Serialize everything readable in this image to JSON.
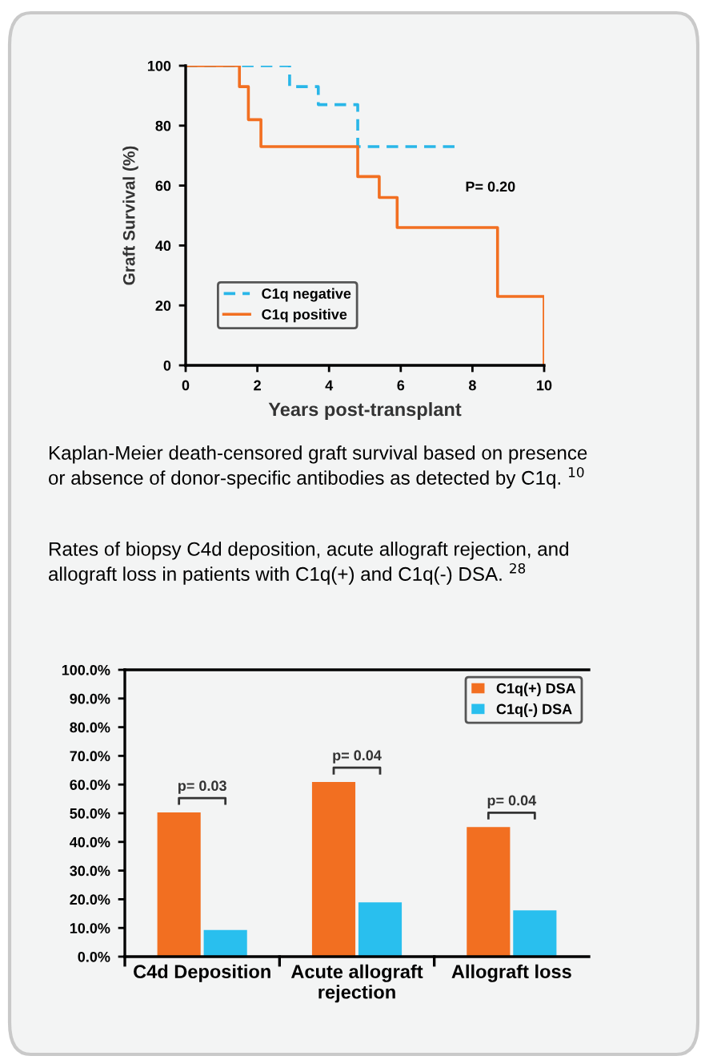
{
  "chart_data": [
    {
      "type": "step",
      "xlabel": "Years post-transplant",
      "ylabel": "Graft Survival (%)",
      "xlim": [
        0,
        10
      ],
      "ylim": [
        0,
        100
      ],
      "xticks": [
        0,
        2,
        4,
        6,
        8,
        10
      ],
      "yticks": [
        0,
        20,
        40,
        60,
        80,
        100
      ],
      "grid": false,
      "legend": "bottom left",
      "marker": "none",
      "series": [
        {
          "name": "C1q negative",
          "color": "#29b6e8",
          "line_style": "dashed",
          "x": [
            0,
            2.9,
            3.7,
            4.8,
            7.6
          ],
          "values": [
            100,
            93,
            87,
            73,
            73
          ]
        },
        {
          "name": "C1q positive",
          "color": "#f26f21",
          "line_style": "solid",
          "x": [
            0,
            1.5,
            1.75,
            2.1,
            4.8,
            5.4,
            5.9,
            8.7,
            10
          ],
          "values": [
            100,
            93,
            82,
            73,
            63,
            56,
            46,
            23,
            0
          ]
        }
      ],
      "annotations": [
        "P= 0.20",
        "Kaplan-Meier death-censored graft survival based on presence\nor absence of donor-specific antibodies as detected by C1q. $^{10}$"
      ]
    },
    {
      "type": "bar",
      "categories": [
        "C4d Deposition",
        "Acute allograft\nrejection",
        "Allograft loss"
      ],
      "ylim": [
        0,
        100
      ],
      "yticks": [
        {
          "value": 0,
          "label": "0.0%"
        },
        {
          "value": 10,
          "label": "10.0%"
        },
        {
          "value": 20,
          "label": "20.0%"
        },
        {
          "value": 30,
          "label": "30.0%"
        },
        {
          "value": 40,
          "label": "40.0%"
        },
        {
          "value": 50,
          "label": "50.0%"
        },
        {
          "value": 60,
          "label": "60.0%"
        },
        {
          "value": 70,
          "label": "70.0%"
        },
        {
          "value": 80,
          "label": "80.0%"
        },
        {
          "value": 90,
          "label": "90.0%"
        },
        {
          "value": 100,
          "label": "100.0%"
        }
      ],
      "grid": false,
      "legend": "top right",
      "series": [
        {
          "name": "C1q(+) DSA",
          "color": "#f26f21",
          "values": [
            50.3,
            60.9,
            45.2
          ]
        },
        {
          "name": "C1q(-) DSA",
          "color": "#29bfee",
          "values": [
            9.3,
            18.9,
            16.1
          ]
        }
      ],
      "annotations": [
        "Rates of biopsy C4d deposition, acute allograft rejection, and\nallograft loss in patients with C1q(+) and C1q(-) DSA. $^{28}$",
        "p= 0.03",
        "p= 0.04",
        "p= 0.04"
      ]
    }
  ]
}
